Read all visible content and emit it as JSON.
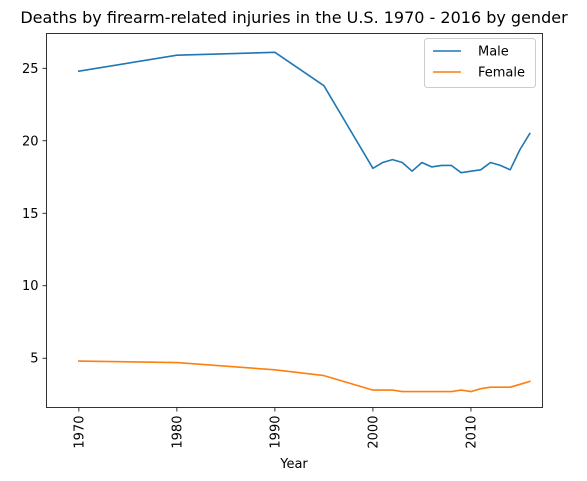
{
  "chart_data": {
    "type": "line",
    "title": "Deaths by firearm-related injuries in the U.S. 1970 - 2016 by gender",
    "xlabel": "Year",
    "ylabel": "",
    "xlim": [
      1966.7,
      2017.3
    ],
    "ylim": [
      1.6,
      27.4
    ],
    "x_ticks": [
      1970,
      1980,
      1990,
      2000,
      2010
    ],
    "y_ticks": [
      5,
      10,
      15,
      20,
      25
    ],
    "grid": false,
    "legend_position": "top-right",
    "series": [
      {
        "name": "Male",
        "color": "#1f77b4",
        "x": [
          1970,
          1980,
          1990,
          1995,
          2000,
          2001,
          2002,
          2003,
          2004,
          2005,
          2006,
          2007,
          2008,
          2009,
          2010,
          2011,
          2012,
          2013,
          2014,
          2015,
          2016
        ],
        "y": [
          24.8,
          25.9,
          26.1,
          23.8,
          18.1,
          18.5,
          18.7,
          18.5,
          17.9,
          18.5,
          18.2,
          18.3,
          18.3,
          17.8,
          17.9,
          18.0,
          18.5,
          18.3,
          18.0,
          19.4,
          20.5
        ]
      },
      {
        "name": "Female",
        "color": "#ff7f0e",
        "x": [
          1970,
          1980,
          1990,
          1995,
          2000,
          2001,
          2002,
          2003,
          2004,
          2005,
          2006,
          2007,
          2008,
          2009,
          2010,
          2011,
          2012,
          2013,
          2014,
          2015,
          2016
        ],
        "y": [
          4.8,
          4.7,
          4.2,
          3.8,
          2.8,
          2.8,
          2.8,
          2.7,
          2.7,
          2.7,
          2.7,
          2.7,
          2.7,
          2.8,
          2.7,
          2.9,
          3.0,
          3.0,
          3.0,
          3.2,
          3.4
        ]
      }
    ]
  }
}
